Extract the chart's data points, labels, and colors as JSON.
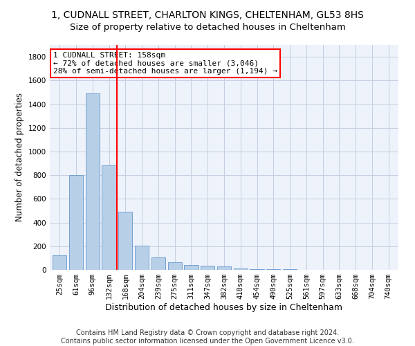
{
  "title": "1, CUDNALL STREET, CHARLTON KINGS, CHELTENHAM, GL53 8HS",
  "subtitle": "Size of property relative to detached houses in Cheltenham",
  "xlabel": "Distribution of detached houses by size in Cheltenham",
  "ylabel": "Number of detached properties",
  "categories": [
    "25sqm",
    "61sqm",
    "96sqm",
    "132sqm",
    "168sqm",
    "204sqm",
    "239sqm",
    "275sqm",
    "311sqm",
    "347sqm",
    "382sqm",
    "418sqm",
    "454sqm",
    "490sqm",
    "525sqm",
    "561sqm",
    "597sqm",
    "633sqm",
    "668sqm",
    "704sqm",
    "740sqm"
  ],
  "values": [
    125,
    800,
    1490,
    880,
    490,
    205,
    105,
    65,
    42,
    35,
    28,
    14,
    8,
    4,
    3,
    2,
    1,
    1,
    1,
    1,
    1
  ],
  "bar_color": "#b8cfe8",
  "bar_edge_color": "#6699cc",
  "red_line_x": 3.5,
  "annotation_text": "1 CUDNALL STREET: 158sqm\n← 72% of detached houses are smaller (3,046)\n28% of semi-detached houses are larger (1,194) →",
  "ylim": [
    0,
    1900
  ],
  "yticks": [
    0,
    200,
    400,
    600,
    800,
    1000,
    1200,
    1400,
    1600,
    1800
  ],
  "footer": "Contains HM Land Registry data © Crown copyright and database right 2024.\nContains public sector information licensed under the Open Government Licence v3.0.",
  "bg_color": "#edf2fb",
  "grid_color": "#c5cfe0",
  "title_fontsize": 10,
  "subtitle_fontsize": 9.5,
  "xlabel_fontsize": 9,
  "ylabel_fontsize": 8.5,
  "tick_fontsize": 7.5,
  "annotation_fontsize": 8,
  "footer_fontsize": 7
}
